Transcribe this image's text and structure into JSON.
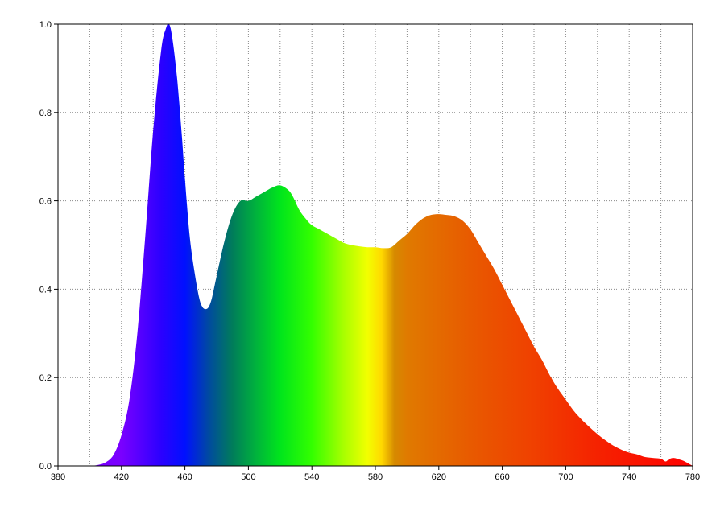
{
  "chart_data": {
    "type": "area",
    "title": "",
    "xlabel": "",
    "ylabel": "",
    "xlim": [
      380,
      780
    ],
    "ylim": [
      0,
      1.0
    ],
    "grid": true,
    "x_ticks": [
      "380",
      "420",
      "460",
      "500",
      "540",
      "580",
      "620",
      "660",
      "700",
      "740",
      "780"
    ],
    "y_ticks": [
      "0.0",
      "0.2",
      "0.4",
      "0.6",
      "0.8",
      "1.0"
    ],
    "x_tick_values": [
      380,
      420,
      460,
      500,
      540,
      580,
      620,
      660,
      700,
      740,
      780
    ],
    "y_tick_values": [
      0,
      0.2,
      0.4,
      0.6,
      0.8,
      1.0
    ],
    "fill": "visible-spectrum gradient",
    "spectrum_colors": [
      {
        "wl": 420,
        "color": "#7a00ff"
      },
      {
        "wl": 445,
        "color": "#2b00ff"
      },
      {
        "wl": 460,
        "color": "#0010ff"
      },
      {
        "wl": 475,
        "color": "#004aa0"
      },
      {
        "wl": 490,
        "color": "#007d5a"
      },
      {
        "wl": 505,
        "color": "#00b33c"
      },
      {
        "wl": 520,
        "color": "#00e51c"
      },
      {
        "wl": 540,
        "color": "#33ff00"
      },
      {
        "wl": 560,
        "color": "#a8ff00"
      },
      {
        "wl": 575,
        "color": "#f2ff00"
      },
      {
        "wl": 584,
        "color": "#ffd800"
      },
      {
        "wl": 592,
        "color": "#d68a00"
      },
      {
        "wl": 600,
        "color": "#e07a00"
      },
      {
        "wl": 640,
        "color": "#e85a00"
      },
      {
        "wl": 680,
        "color": "#f04000"
      },
      {
        "wl": 720,
        "color": "#f52200"
      },
      {
        "wl": 780,
        "color": "#ff0000"
      }
    ],
    "x": [
      400,
      405,
      410,
      415,
      420,
      425,
      430,
      435,
      440,
      445,
      448,
      450,
      452,
      455,
      458,
      460,
      463,
      466,
      469,
      471,
      473,
      475,
      477,
      480,
      485,
      490,
      495,
      500,
      505,
      510,
      515,
      520,
      525,
      528,
      532,
      536,
      540,
      545,
      550,
      555,
      560,
      565,
      570,
      575,
      580,
      585,
      590,
      595,
      600,
      605,
      610,
      615,
      620,
      625,
      630,
      635,
      640,
      645,
      650,
      655,
      660,
      665,
      670,
      675,
      680,
      685,
      690,
      695,
      700,
      705,
      710,
      715,
      720,
      725,
      730,
      735,
      740,
      745,
      750,
      755,
      760,
      763,
      765,
      768,
      772,
      775,
      780
    ],
    "values": [
      0.0,
      0.002,
      0.008,
      0.025,
      0.07,
      0.15,
      0.3,
      0.52,
      0.76,
      0.94,
      0.99,
      1.0,
      0.97,
      0.88,
      0.75,
      0.65,
      0.52,
      0.44,
      0.38,
      0.36,
      0.355,
      0.36,
      0.38,
      0.43,
      0.51,
      0.57,
      0.6,
      0.6,
      0.61,
      0.62,
      0.63,
      0.635,
      0.625,
      0.61,
      0.58,
      0.56,
      0.545,
      0.535,
      0.525,
      0.515,
      0.505,
      0.5,
      0.497,
      0.495,
      0.495,
      0.493,
      0.495,
      0.51,
      0.525,
      0.545,
      0.56,
      0.568,
      0.57,
      0.568,
      0.565,
      0.555,
      0.535,
      0.505,
      0.475,
      0.445,
      0.41,
      0.375,
      0.34,
      0.305,
      0.27,
      0.24,
      0.205,
      0.175,
      0.15,
      0.125,
      0.105,
      0.088,
      0.072,
      0.058,
      0.046,
      0.037,
      0.03,
      0.026,
      0.02,
      0.018,
      0.016,
      0.01,
      0.015,
      0.018,
      0.014,
      0.01,
      0.0
    ]
  }
}
